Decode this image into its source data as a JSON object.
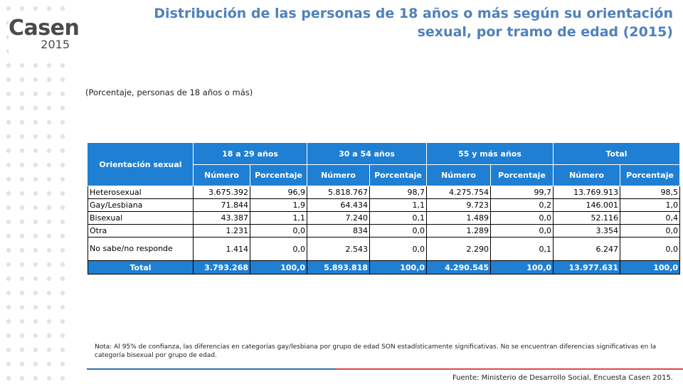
{
  "logo": {
    "name": "Casen",
    "year": "2015"
  },
  "title": "Distribución de las personas de 18 años o más según su orientación sexual, por tramo de edad (2015)",
  "subtitle": "(Porcentaje, personas de 18 años o más)",
  "table": {
    "row_header": "Orientación sexual",
    "groups": [
      "18 a 29 años",
      "30 a 54 años",
      "55 y más años",
      "Total"
    ],
    "subheaders": [
      "Número",
      "Porcentaje"
    ],
    "rows": [
      {
        "label": "Heterosexual",
        "cells": [
          "3.675.392",
          "96,9",
          "5.818.767",
          "98,7",
          "4.275.754",
          "99,7",
          "13.769.913",
          "98,5"
        ]
      },
      {
        "label": "Gay/Lesbiana",
        "cells": [
          "71.844",
          "1,9",
          "64.434",
          "1,1",
          "9.723",
          "0,2",
          "146.001",
          "1,0"
        ]
      },
      {
        "label": "Bisexual",
        "cells": [
          "43.387",
          "1,1",
          "7.240",
          "0,1",
          "1.489",
          "0,0",
          "52.116",
          "0,4"
        ]
      },
      {
        "label": "Otra",
        "cells": [
          "1.231",
          "0,0",
          "834",
          "0,0",
          "1.289",
          "0,0",
          "3.354",
          "0,0"
        ]
      },
      {
        "label": "No sabe/no responde",
        "cells": [
          "1.414",
          "0,0",
          "2.543",
          "0,0",
          "2.290",
          "0,1",
          "6.247",
          "0,0"
        ]
      }
    ],
    "total": {
      "label": "Total",
      "cells": [
        "3.793.268",
        "100,0",
        "5.893.818",
        "100,0",
        "4.290.545",
        "100,0",
        "13.977.631",
        "100,0"
      ]
    }
  },
  "note": "Nota: Al 95% de confianza, las diferencias en categorías gay/lesbiana por grupo de edad SON estadísticamente significativas. No se encuentran diferencias significativas en la categoría bisexual por grupo de edad.",
  "source": "Fuente: Ministerio de Desarrollo Social, Encuesta Casen 2015.",
  "colors": {
    "accent": "#4f81bd",
    "header_fill": "#1f7fd3",
    "rule_blue": "#2f6fb6",
    "rule_red": "#d64a4a",
    "dot": "#e3e3e3"
  }
}
